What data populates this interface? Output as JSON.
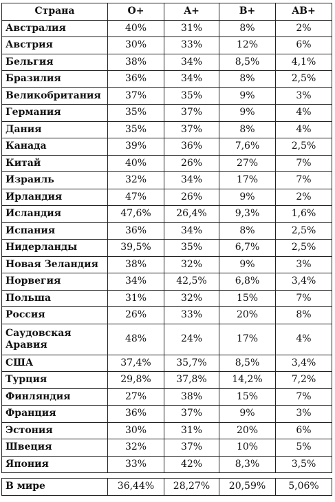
{
  "table": {
    "headers": [
      "Страна",
      "O+",
      "A+",
      "B+",
      "AB+"
    ],
    "rows": [
      [
        "Австралия",
        "40%",
        "31%",
        "8%",
        "2%"
      ],
      [
        "Австрия",
        "30%",
        "33%",
        "12%",
        "6%"
      ],
      [
        "Бельгия",
        "38%",
        "34%",
        "8,5%",
        "4,1%"
      ],
      [
        "Бразилия",
        "36%",
        "34%",
        "8%",
        "2,5%"
      ],
      [
        "Великобритания",
        "37%",
        "35%",
        "9%",
        "3%"
      ],
      [
        "Германия",
        "35%",
        "37%",
        "9%",
        "4%"
      ],
      [
        "Дания",
        "35%",
        "37%",
        "8%",
        "4%"
      ],
      [
        "Канада",
        "39%",
        "36%",
        "7,6%",
        "2,5%"
      ],
      [
        "Китай",
        "40%",
        "26%",
        "27%",
        "7%"
      ],
      [
        "Израиль",
        "32%",
        "34%",
        "17%",
        "7%"
      ],
      [
        "Ирландия",
        "47%",
        "26%",
        "9%",
        "2%"
      ],
      [
        "Исландия",
        "47,6%",
        "26,4%",
        "9,3%",
        "1,6%"
      ],
      [
        "Испания",
        "36%",
        "34%",
        "8%",
        "2,5%"
      ],
      [
        "Нидерланды",
        "39,5%",
        "35%",
        "6,7%",
        "2,5%"
      ],
      [
        "Новая Зеландия",
        "38%",
        "32%",
        "9%",
        "3%"
      ],
      [
        "Норвегия",
        "34%",
        "42,5%",
        "6,8%",
        "3,4%"
      ],
      [
        "Польша",
        "31%",
        "32%",
        "15%",
        "7%"
      ],
      [
        "Россия",
        "26%",
        "33%",
        "20%",
        "8%"
      ],
      [
        "Саудовская Аравия",
        "48%",
        "24%",
        "17%",
        "4%"
      ],
      [
        "США",
        "37,4%",
        "35,7%",
        "8,5%",
        "3,4%"
      ],
      [
        "Турция",
        "29,8%",
        "37,8%",
        "14,2%",
        "7,2%"
      ],
      [
        "Финляндия",
        "27%",
        "38%",
        "15%",
        "7%"
      ],
      [
        "Франция",
        "36%",
        "37%",
        "9%",
        "3%"
      ],
      [
        "Эстония",
        "30%",
        "31%",
        "20%",
        "6%"
      ],
      [
        "Швеция",
        "32%",
        "37%",
        "10%",
        "5%"
      ],
      [
        "Япония",
        "33%",
        "42%",
        "8,3%",
        "3,5%"
      ]
    ],
    "total": [
      "В мире",
      "36,44%",
      "28,27%",
      "20,59%",
      "5,06%"
    ]
  }
}
